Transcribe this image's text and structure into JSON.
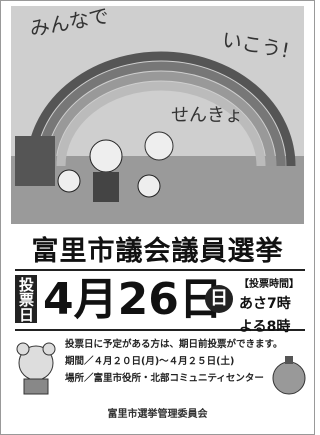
{
  "illustration": {
    "texts": [
      "みんなで",
      "いこう!",
      "せんきょ"
    ]
  },
  "title": "富里市議会議員選挙",
  "election_day": {
    "label": "投票日",
    "date": "4月26日",
    "weekday": "日",
    "hours_label": "【投票時間】",
    "open": "あさ7時",
    "close": "よる8時"
  },
  "notice": {
    "lead": "投票日に予定がある方は、期日前投票ができます。",
    "period": "期間／４月２０日(月)～４月２５日(土)",
    "place": "場所／富里市役所・北部コミュニティセンター"
  },
  "organizer": "富里市選挙管理委員会"
}
